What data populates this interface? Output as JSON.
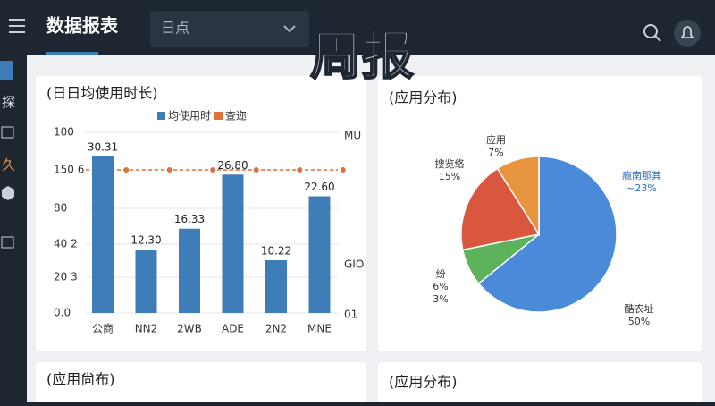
{
  "topbar": {
    "title": "数据报表",
    "dropdown": "日点"
  },
  "overlay": "周报",
  "sidebar": [
    "探",
    "久"
  ],
  "bottom_cards": [
    "(应用尙布)",
    "(应用分布)"
  ],
  "chart_data": [
    {
      "type": "bar",
      "title": "(日日均使用时长)",
      "legend": [
        {
          "name": "均使用时",
          "color": "#3f7db8"
        },
        {
          "name": "查迩",
          "color": "#e0703a"
        }
      ],
      "categories": [
        "公商",
        "NN2",
        "2WB",
        "ADE",
        "2N2",
        "MNE"
      ],
      "values": [
        30.31,
        12.3,
        16.33,
        26.8,
        10.22,
        22.6
      ],
      "value_labels": [
        "30.31",
        "12.30",
        "16.33",
        "26.80",
        "10.22",
        "22.60"
      ],
      "color": "#3f7db8",
      "left_labels": [
        "100",
        "150 6",
        "80",
        "40 2",
        "20 3",
        "0.0"
      ],
      "right_labels": [
        "MU",
        "GIO",
        "01"
      ],
      "grid": true
    },
    {
      "type": "pie",
      "title": "(应用分布)",
      "categories": [
        "酷农址",
        "纷",
        "搜览络",
        "应用"
      ],
      "values": [
        50,
        6,
        15,
        7
      ],
      "value_labels": [
        "50%",
        "6%",
        "15%",
        "7%"
      ],
      "colors": [
        "#4a8ad8",
        "#5cb35c",
        "#d9573f",
        "#e8953f"
      ],
      "annotations": [
        "瘾南那其",
        "~23%",
        "3%"
      ]
    }
  ]
}
